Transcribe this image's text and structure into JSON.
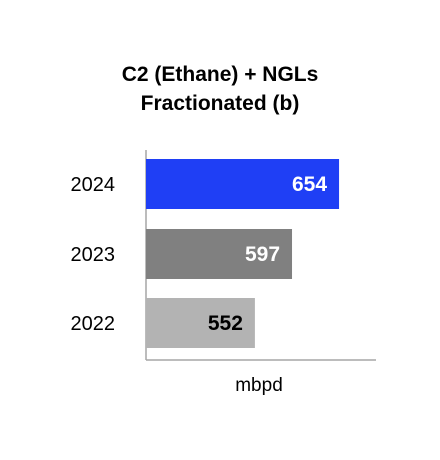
{
  "chart_data": {
    "type": "bar",
    "orientation": "horizontal",
    "title_lines": [
      "C2 (Ethane) + NGLs",
      "Fractionated (b)"
    ],
    "categories": [
      "2024",
      "2023",
      "2022"
    ],
    "values": [
      654,
      597,
      552
    ],
    "bar_colors": [
      "#1f3ff5",
      "#808080",
      "#b3b3b3"
    ],
    "label_colors": [
      "#ffffff",
      "#ffffff",
      "#000000"
    ],
    "xlabel": "mbpd",
    "ylabel": "",
    "xlim": [
      420,
      720
    ],
    "grid": false,
    "legend": "none"
  }
}
